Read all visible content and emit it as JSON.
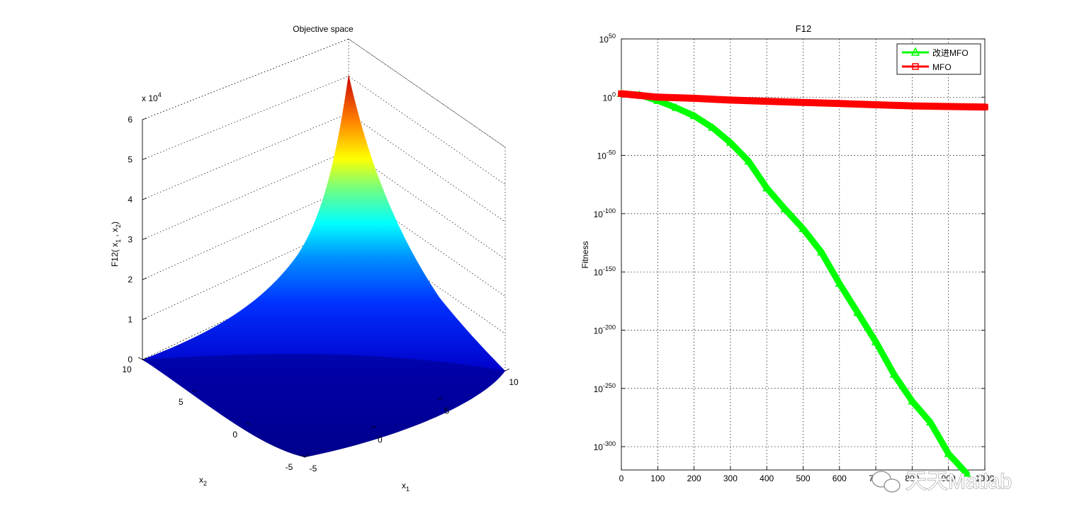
{
  "watermark": {
    "text": "天天Matlab",
    "icon": "wechat-icon"
  },
  "chart_data": [
    {
      "type": "surface",
      "title": "Objective space",
      "zlabel": "F12( x1 , x2 )",
      "xlabel": "x1",
      "ylabel": "x2",
      "z_exponent": "x 10^4",
      "xlim": [
        -5,
        10
      ],
      "ylim": [
        -5,
        10
      ],
      "zlim": [
        0,
        6
      ],
      "x_ticks": [
        "-5",
        "0",
        "5",
        "10"
      ],
      "y_ticks": [
        "-5",
        "0",
        "5",
        "10"
      ],
      "z_ticks": [
        "0",
        "1",
        "2",
        "3",
        "4",
        "5",
        "6"
      ],
      "z_exponent_base": "x 10",
      "z_exponent_power": "4",
      "zlabel_main": "F12( x",
      "zlabel_sub1": "1",
      "zlabel_mid": ", x",
      "zlabel_sub2": "2",
      "zlabel_end": ")",
      "xlabel_main": "x",
      "xlabel_sub": "1",
      "ylabel_main": "x",
      "ylabel_sub": "2",
      "grid": true,
      "colormap": "jet",
      "peak_z": 5.5
    },
    {
      "type": "line",
      "title": "F12",
      "xlabel": "",
      "ylabel": "Fitness",
      "yscale": "log",
      "xlim": [
        0,
        1000
      ],
      "ylim_exponent": [
        -320,
        50
      ],
      "x_ticks": [
        "0",
        "100",
        "200",
        "300",
        "400",
        "500",
        "600",
        "700",
        "800",
        "900",
        "1000"
      ],
      "y_tick_base": "10",
      "y_tick_exponents": [
        "50",
        "0",
        "-50",
        "-100",
        "-150",
        "-200",
        "-250",
        "-300"
      ],
      "grid": true,
      "legend_position": "top-right",
      "series": [
        {
          "name": "改进MFO",
          "color": "#00ff00",
          "marker": "triangle",
          "x": [
            0,
            50,
            100,
            150,
            200,
            250,
            300,
            350,
            400,
            450,
            500,
            550,
            600,
            650,
            700,
            750,
            800,
            850,
            900,
            950
          ],
          "log10_y": [
            3,
            2,
            -3,
            -9,
            -16,
            -26,
            -39,
            -55,
            -78,
            -96,
            -113,
            -133,
            -160,
            -185,
            -210,
            -238,
            -261,
            -279,
            -306,
            -323
          ]
        },
        {
          "name": "MFO",
          "color": "#ff0000",
          "marker": "square",
          "x": [
            0,
            100,
            200,
            300,
            400,
            500,
            600,
            700,
            800,
            900,
            1000
          ],
          "log10_y": [
            3,
            0,
            -1,
            -2.5,
            -3.5,
            -4.5,
            -5.5,
            -6.5,
            -7.5,
            -8,
            -8.5
          ]
        }
      ]
    }
  ]
}
